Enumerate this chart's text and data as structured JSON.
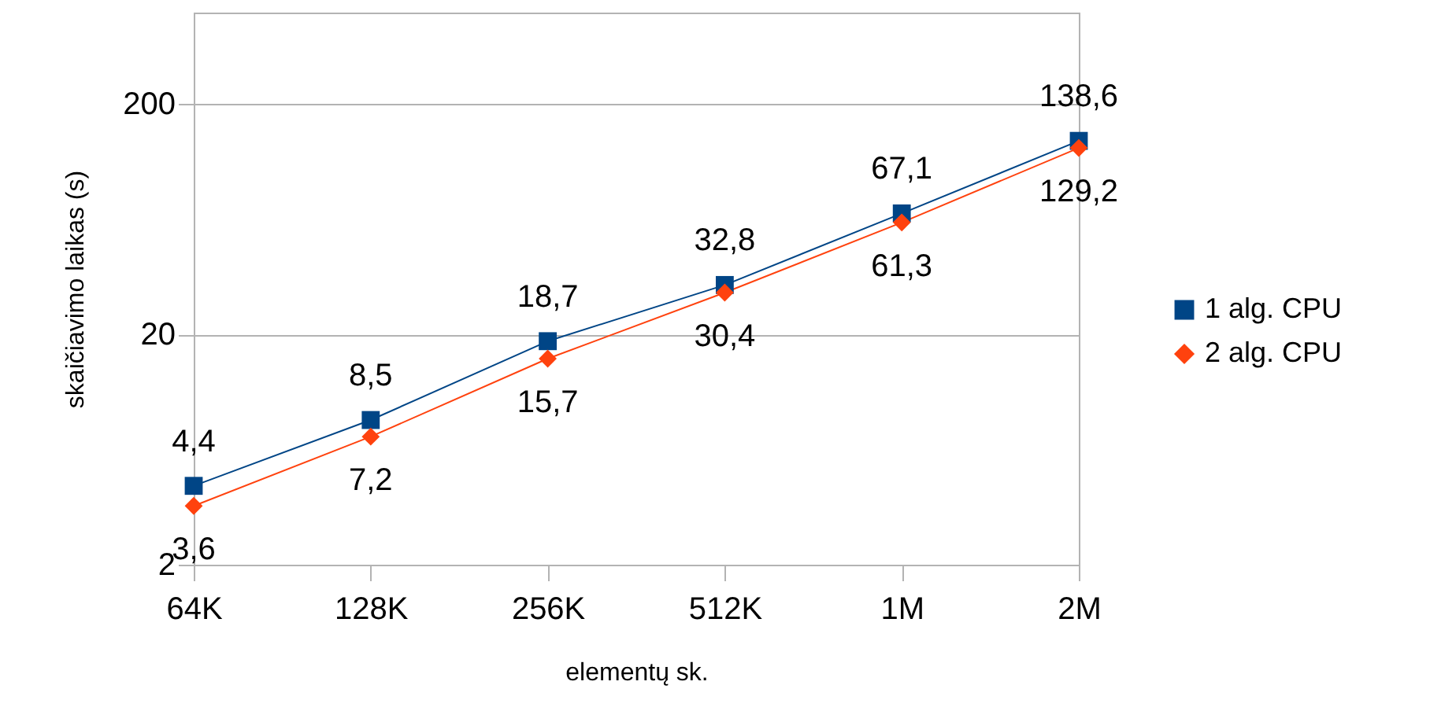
{
  "chart_data": {
    "type": "line",
    "xlabel": "elementų sk.",
    "ylabel": "skaičiavimo laikas (s)",
    "categories": [
      "64K",
      "128K",
      "256K",
      "512K",
      "1M",
      "2M"
    ],
    "series": [
      {
        "name": "1 alg. CPU",
        "color": "#004586",
        "marker": "square",
        "values": [
          4.4,
          8.5,
          18.7,
          32.8,
          67.1,
          138.6
        ],
        "value_labels": [
          "4,4",
          "8,5",
          "18,7",
          "32,8",
          "67,1",
          "138,6"
        ]
      },
      {
        "name": "2 alg. CPU",
        "color": "#ff420e",
        "marker": "diamond",
        "values": [
          3.6,
          7.2,
          15.7,
          30.4,
          61.3,
          129.2
        ],
        "value_labels": [
          "3,6",
          "7,2",
          "15,7",
          "30,4",
          "61,3",
          "129,2"
        ]
      }
    ],
    "log": "y",
    "ylim": [
      2,
      500
    ],
    "yticks": [
      2,
      20,
      200
    ],
    "grid": "y",
    "legend": "right",
    "line_style": "solid"
  }
}
